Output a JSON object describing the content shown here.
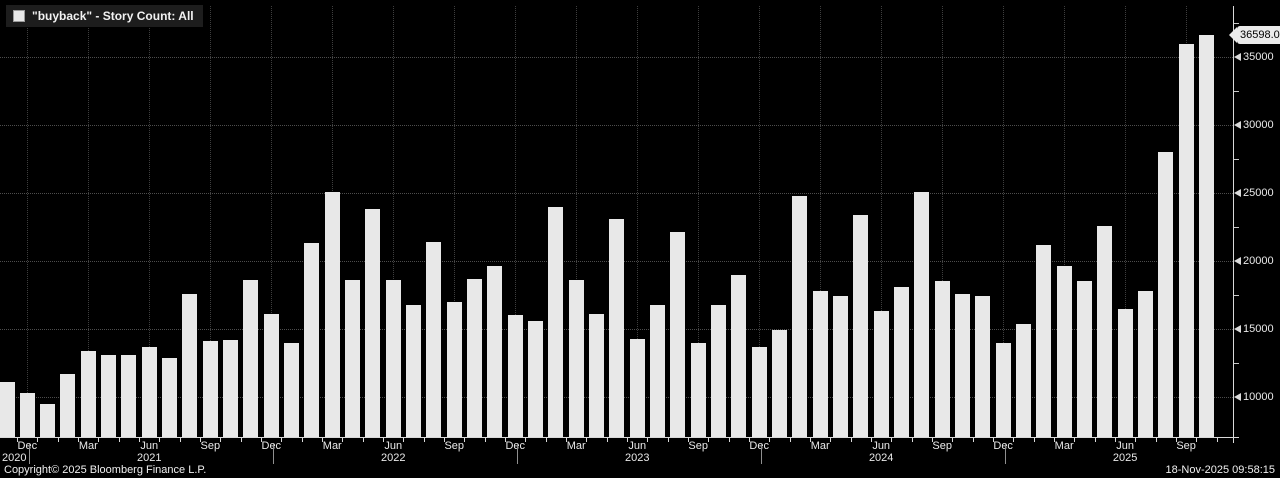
{
  "chart_data": {
    "type": "bar",
    "title": "\"buyback\" - Story Count: All",
    "legend_position": "top-left",
    "grid": "dotted",
    "bar_color": "#e8e8e8",
    "background_color": "#000000",
    "y_axis_side": "right",
    "ylim": [
      7059,
      38750
    ],
    "y_ticks": [
      10000,
      15000,
      20000,
      25000,
      30000,
      35000
    ],
    "y_minor_ticks": [
      12500,
      17500,
      22500,
      27500,
      32500,
      37500
    ],
    "x_label_months": [
      "Dec",
      "Mar",
      "Jun",
      "Sep"
    ],
    "year_labels": [
      "2020",
      "2021",
      "2022",
      "2023",
      "2024",
      "2025"
    ],
    "last_value_label": "36598.00",
    "last_value": 36598,
    "categories": [
      "Nov 2020",
      "Dec 2020",
      "Jan 2021",
      "Feb 2021",
      "Mar 2021",
      "Apr 2021",
      "May 2021",
      "Jun 2021",
      "Jul 2021",
      "Aug 2021",
      "Sep 2021",
      "Oct 2021",
      "Nov 2021",
      "Dec 2021",
      "Jan 2022",
      "Feb 2022",
      "Mar 2022",
      "Apr 2022",
      "May 2022",
      "Jun 2022",
      "Jul 2022",
      "Aug 2022",
      "Sep 2022",
      "Oct 2022",
      "Nov 2022",
      "Dec 2022",
      "Jan 2023",
      "Feb 2023",
      "Mar 2023",
      "Apr 2023",
      "May 2023",
      "Jun 2023",
      "Jul 2023",
      "Aug 2023",
      "Sep 2023",
      "Oct 2023",
      "Nov 2023",
      "Dec 2023",
      "Jan 2024",
      "Feb 2024",
      "Mar 2024",
      "Apr 2024",
      "May 2024",
      "Jun 2024",
      "Jul 2024",
      "Aug 2024",
      "Sep 2024",
      "Oct 2024",
      "Nov 2024",
      "Dec 2024",
      "Jan 2025",
      "Feb 2025",
      "Mar 2025",
      "Apr 2025",
      "May 2025",
      "Jun 2025",
      "Jul 2025",
      "Aug 2025",
      "Sep 2025",
      "Oct 2025"
    ],
    "values": [
      11100,
      10300,
      9500,
      11700,
      13400,
      13100,
      13100,
      13700,
      12900,
      17600,
      14100,
      14200,
      18600,
      16100,
      14000,
      21300,
      25100,
      18600,
      23800,
      18600,
      16800,
      21400,
      17000,
      18700,
      19600,
      16000,
      15600,
      24000,
      18600,
      16100,
      23100,
      14300,
      16800,
      22100,
      14000,
      16800,
      19000,
      13700,
      14900,
      24800,
      17800,
      17400,
      23400,
      16300,
      18100,
      25100,
      18500,
      17600,
      17400,
      14000,
      15400,
      21200,
      19600,
      18500,
      22600,
      16500,
      17800,
      28000,
      35950,
      36598
    ]
  },
  "footer": {
    "copyright": "Copyright© 2025 Bloomberg Finance L.P.",
    "timestamp": "18-Nov-2025 09:58:15"
  },
  "colors": {
    "bar": "#e8e8e8",
    "grid": "#4d4d4d",
    "axis": "#d9d9d9",
    "text": "#e9e9e9",
    "legend_bg": "#1d1d1d",
    "badge_bg": "#ebebeb",
    "badge_text": "#000000"
  }
}
